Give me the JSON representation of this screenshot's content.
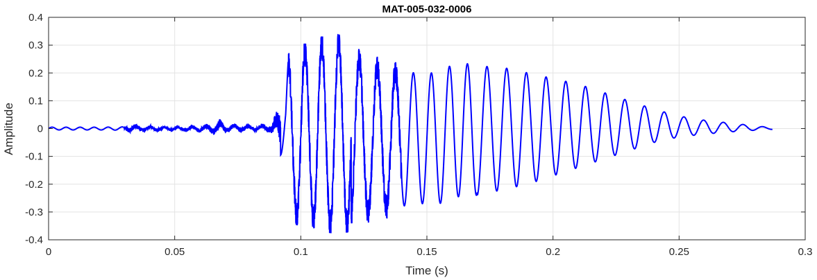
{
  "chart_data": {
    "type": "line",
    "title": "MAT-005-032-0006",
    "xlabel": "Time (s)",
    "ylabel": "Amplitude",
    "xlim": [
      0,
      0.3
    ],
    "ylim": [
      -0.4,
      0.4
    ],
    "xticks": [
      0,
      0.05,
      0.1,
      0.15,
      0.2,
      0.25,
      0.3
    ],
    "xtick_labels": [
      "0",
      "0.05",
      "0.1",
      "0.15",
      "0.2",
      "0.25",
      "0.3"
    ],
    "yticks": [
      -0.4,
      -0.3,
      -0.2,
      -0.1,
      0,
      0.1,
      0.2,
      0.3,
      0.4
    ],
    "ytick_labels": [
      "-0.4",
      "-0.3",
      "-0.2",
      "-0.1",
      "0",
      "0.1",
      "0.2",
      "0.3",
      "0.4"
    ],
    "grid": true,
    "line_color": "#0000ff",
    "series": [
      {
        "values_note": "",
        "x": [
          0,
          0.01,
          0.02,
          0.03,
          0.031,
          0.04,
          0.05,
          0.06,
          0.065,
          0.068,
          0.07,
          0.08,
          0.088,
          0.09,
          0.092,
          0.094,
          0.095,
          0.097,
          0.1,
          0.103,
          0.107,
          0.11,
          0.113,
          0.116,
          0.119,
          0.122,
          0.125,
          0.127,
          0.13,
          0.135,
          0.14,
          0.145,
          0.15,
          0.155,
          0.16,
          0.165,
          0.17,
          0.18,
          0.19,
          0.2,
          0.21,
          0.22,
          0.23,
          0.24,
          0.25,
          0.26,
          0.27,
          0.28,
          0.287
        ],
        "envelope_max": [
          0.005,
          0.005,
          0.005,
          0.006,
          0.02,
          0.012,
          0.008,
          0.014,
          0.02,
          0.035,
          0.02,
          0.015,
          0.02,
          0.06,
          0.09,
          0.1,
          0.24,
          0.24,
          0.28,
          0.27,
          0.3,
          0.3,
          0.3,
          0.31,
          0.31,
          0.26,
          0.23,
          0.26,
          0.22,
          0.2,
          0.21,
          0.2,
          0.2,
          0.2,
          0.23,
          0.235,
          0.225,
          0.22,
          0.2,
          0.18,
          0.16,
          0.13,
          0.1,
          0.07,
          0.045,
          0.03,
          0.02,
          0.01,
          0.003
        ],
        "envelope_min": [
          -0.005,
          -0.005,
          -0.005,
          -0.006,
          -0.015,
          -0.012,
          -0.008,
          -0.014,
          -0.02,
          -0.025,
          -0.015,
          -0.01,
          -0.015,
          -0.05,
          -0.1,
          -0.14,
          -0.24,
          -0.29,
          -0.34,
          -0.3,
          -0.35,
          -0.34,
          -0.35,
          -0.33,
          -0.35,
          -0.33,
          -0.35,
          -0.3,
          -0.28,
          -0.29,
          -0.28,
          -0.27,
          -0.27,
          -0.27,
          -0.25,
          -0.24,
          -0.24,
          -0.22,
          -0.2,
          -0.17,
          -0.14,
          -0.11,
          -0.08,
          -0.05,
          -0.03,
          -0.02,
          -0.012,
          -0.006,
          -0.003
        ]
      }
    ]
  }
}
